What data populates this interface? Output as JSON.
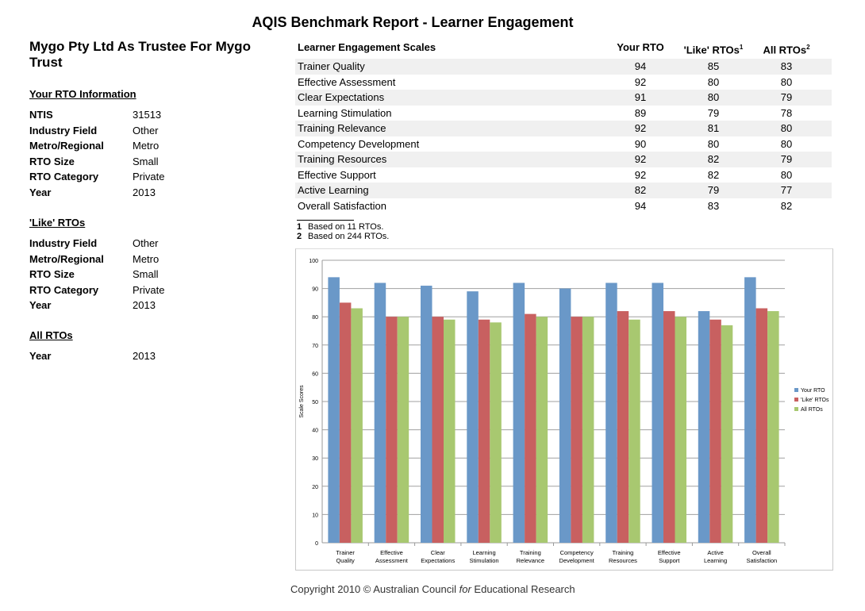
{
  "title": "AQIS Benchmark Report - Learner Engagement",
  "org": "Mygo Pty Ltd As Trustee For Mygo Trust",
  "your_rto": {
    "heading": "Your RTO Information",
    "rows": [
      [
        "NTIS",
        "31513"
      ],
      [
        "Industry Field",
        "Other"
      ],
      [
        "Metro/Regional",
        "Metro"
      ],
      [
        "RTO Size",
        "Small"
      ],
      [
        "RTO Category",
        "Private"
      ],
      [
        "Year",
        "2013"
      ]
    ]
  },
  "like_rtos": {
    "heading": "'Like' RTOs",
    "rows": [
      [
        "Industry Field",
        "Other"
      ],
      [
        "Metro/Regional",
        "Metro"
      ],
      [
        "RTO Size",
        "Small"
      ],
      [
        "RTO Category",
        "Private"
      ],
      [
        "Year",
        "2013"
      ]
    ]
  },
  "all_rtos": {
    "heading": "All RTOs",
    "rows": [
      [
        "Year",
        "2013"
      ]
    ]
  },
  "table": {
    "headers": [
      "Learner Engagement Scales",
      "Your RTO",
      "'Like' RTOs",
      "All RTOs"
    ],
    "sup": [
      "1",
      "2"
    ],
    "rows": [
      [
        "Trainer Quality",
        "94",
        "85",
        "83"
      ],
      [
        "Effective Assessment",
        "92",
        "80",
        "80"
      ],
      [
        "Clear Expectations",
        "91",
        "80",
        "79"
      ],
      [
        "Learning Stimulation",
        "89",
        "79",
        "78"
      ],
      [
        "Training Relevance",
        "92",
        "81",
        "80"
      ],
      [
        "Competency Development",
        "90",
        "80",
        "80"
      ],
      [
        "Training Resources",
        "92",
        "82",
        "79"
      ],
      [
        "Effective Support",
        "92",
        "82",
        "80"
      ],
      [
        "Active Learning",
        "82",
        "79",
        "77"
      ],
      [
        "Overall Satisfaction",
        "94",
        "83",
        "82"
      ]
    ]
  },
  "notes": [
    [
      "1",
      "Based on 11 RTOs."
    ],
    [
      "2",
      "Based on 244 RTOs."
    ]
  ],
  "chart_data": {
    "type": "bar",
    "title": "",
    "xlabel": "",
    "ylabel": "Scale Scores",
    "ylim": [
      0,
      100
    ],
    "yticks": [
      0,
      10,
      20,
      30,
      40,
      50,
      60,
      70,
      80,
      90,
      100
    ],
    "grid": true,
    "legend": "right",
    "categories": [
      [
        "Trainer",
        "Quality"
      ],
      [
        "Effective",
        "Assessment"
      ],
      [
        "Clear",
        "Expectations"
      ],
      [
        "Learning",
        "Stimulation"
      ],
      [
        "Training",
        "Relevance"
      ],
      [
        "Competency",
        "Development"
      ],
      [
        "Training",
        "Resources"
      ],
      [
        "Effective",
        "Support"
      ],
      [
        "Active",
        "Learning"
      ],
      [
        "Overall",
        "Satisfaction"
      ]
    ],
    "series": [
      {
        "name": "Your RTO",
        "color": "#6a98c8",
        "values": [
          94,
          92,
          91,
          89,
          92,
          90,
          92,
          92,
          82,
          94
        ]
      },
      {
        "name": "'Like' RTOs",
        "color": "#c86060",
        "values": [
          85,
          80,
          80,
          79,
          81,
          80,
          82,
          82,
          79,
          83
        ]
      },
      {
        "name": "All RTOs",
        "color": "#a8c870",
        "values": [
          83,
          80,
          79,
          78,
          80,
          80,
          79,
          80,
          77,
          82
        ]
      }
    ]
  },
  "copyright": {
    "pre": "Copyright 2010 © Australian Council ",
    "em": "for",
    "post": " Educational Research"
  }
}
